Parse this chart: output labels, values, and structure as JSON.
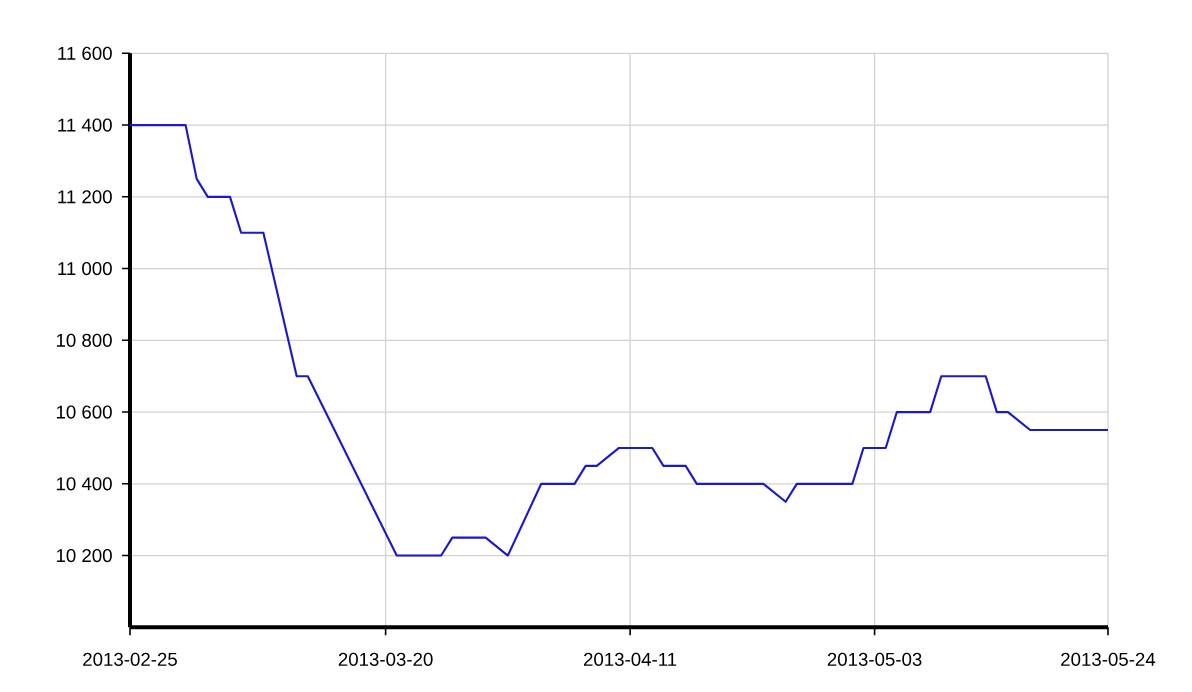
{
  "chart_data": {
    "type": "line",
    "x": [
      "2013-02-25",
      "2013-03-02",
      "2013-03-03",
      "2013-03-04",
      "2013-03-06",
      "2013-03-07",
      "2013-03-09",
      "2013-03-12",
      "2013-03-13",
      "2013-03-21",
      "2013-03-25",
      "2013-03-26",
      "2013-03-29",
      "2013-03-31",
      "2013-04-03",
      "2013-04-06",
      "2013-04-07",
      "2013-04-08",
      "2013-04-10",
      "2013-04-13",
      "2013-04-14",
      "2013-04-16",
      "2013-04-17",
      "2013-04-23",
      "2013-04-25",
      "2013-04-26",
      "2013-05-01",
      "2013-05-02",
      "2013-05-04",
      "2013-05-05",
      "2013-05-08",
      "2013-05-09",
      "2013-05-13",
      "2013-05-14",
      "2013-05-15",
      "2013-05-17",
      "2013-05-24"
    ],
    "series": [
      {
        "color": "#1a1acc",
        "values": [
          11400,
          11400,
          11250,
          11200,
          11200,
          11100,
          11100,
          10700,
          10700,
          10200,
          10200,
          10250,
          10250,
          10200,
          10400,
          10400,
          10450,
          10450,
          10500,
          10500,
          10450,
          10450,
          10400,
          10400,
          10350,
          10400,
          10400,
          10500,
          10500,
          10600,
          10600,
          10700,
          10700,
          10600,
          10600,
          10550,
          10550
        ]
      }
    ],
    "xlim": [
      "2013-02-25",
      "2013-05-24"
    ],
    "xticks": [
      "2013-02-25",
      "2013-03-20",
      "2013-04-11",
      "2013-05-03",
      "2013-05-24"
    ],
    "ylim": [
      10000,
      11600
    ],
    "yticks": [
      {
        "value": 10200,
        "label": "10 200"
      },
      {
        "value": 10400,
        "label": "10 400"
      },
      {
        "value": 10600,
        "label": "10 600"
      },
      {
        "value": 10800,
        "label": "10 800"
      },
      {
        "value": 11000,
        "label": "11 000"
      },
      {
        "value": 11200,
        "label": "11 200"
      },
      {
        "value": 11400,
        "label": "11 400"
      },
      {
        "value": 11600,
        "label": "11 600"
      }
    ],
    "grid": true,
    "marker": "none",
    "line_style": "solid"
  }
}
